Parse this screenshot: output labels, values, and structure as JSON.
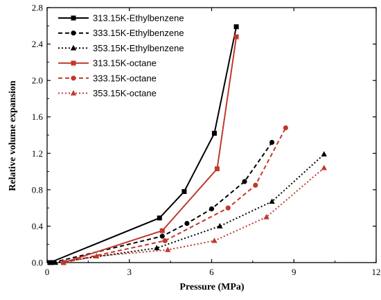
{
  "chart_data": {
    "type": "line",
    "xlabel": "Pressure  (MPa)",
    "ylabel": "Relative volume expansion",
    "xlim": [
      0,
      12
    ],
    "ylim": [
      0,
      2.8
    ],
    "xticks": [
      0,
      3,
      6,
      9,
      12
    ],
    "yticks": [
      0.0,
      0.4,
      0.8,
      1.2,
      1.6,
      2.0,
      2.4,
      2.8
    ],
    "xtick_labels": [
      "0",
      "3",
      "6",
      "9",
      "12"
    ],
    "ytick_labels": [
      "0.0",
      "0.4",
      "0.8",
      "1.2",
      "1.6",
      "2.0",
      "2.4",
      "2.8"
    ],
    "grid": false,
    "legend_position": "top-left",
    "series": [
      {
        "name": "313.15K-Ethylbenzene",
        "color": "#000000",
        "dash": "solid",
        "marker": "square",
        "x": [
          0.1,
          4.1,
          5.0,
          6.1,
          6.9
        ],
        "y": [
          0.0,
          0.49,
          0.78,
          1.42,
          2.59
        ]
      },
      {
        "name": "333.15K-Ethylbenzene",
        "color": "#000000",
        "dash": "dashed",
        "marker": "circle",
        "x": [
          0.2,
          4.2,
          5.1,
          6.0,
          7.2,
          8.2
        ],
        "y": [
          0.0,
          0.29,
          0.43,
          0.59,
          0.89,
          1.32
        ]
      },
      {
        "name": "353.15K-Ethylbenzene",
        "color": "#000000",
        "dash": "dotted",
        "marker": "triangle",
        "x": [
          0.3,
          4.0,
          6.3,
          8.2,
          10.1
        ],
        "y": [
          0.0,
          0.16,
          0.4,
          0.67,
          1.19
        ]
      },
      {
        "name": "313.15K-octane",
        "color": "#c0392b",
        "dash": "solid",
        "marker": "square",
        "x": [
          0.6,
          4.2,
          6.2,
          6.9
        ],
        "y": [
          0.0,
          0.35,
          1.03,
          2.48
        ]
      },
      {
        "name": "333.15K-octane",
        "color": "#c0392b",
        "dash": "dashed",
        "marker": "circle",
        "x": [
          0.6,
          4.3,
          6.6,
          7.6,
          8.7
        ],
        "y": [
          0.0,
          0.24,
          0.6,
          0.85,
          1.48
        ]
      },
      {
        "name": "353.15K-octane",
        "color": "#c0392b",
        "dash": "dotted",
        "marker": "triangle",
        "x": [
          0.6,
          1.8,
          4.4,
          6.1,
          8.0,
          10.1
        ],
        "y": [
          0.0,
          0.07,
          0.14,
          0.24,
          0.5,
          1.04
        ]
      }
    ]
  }
}
